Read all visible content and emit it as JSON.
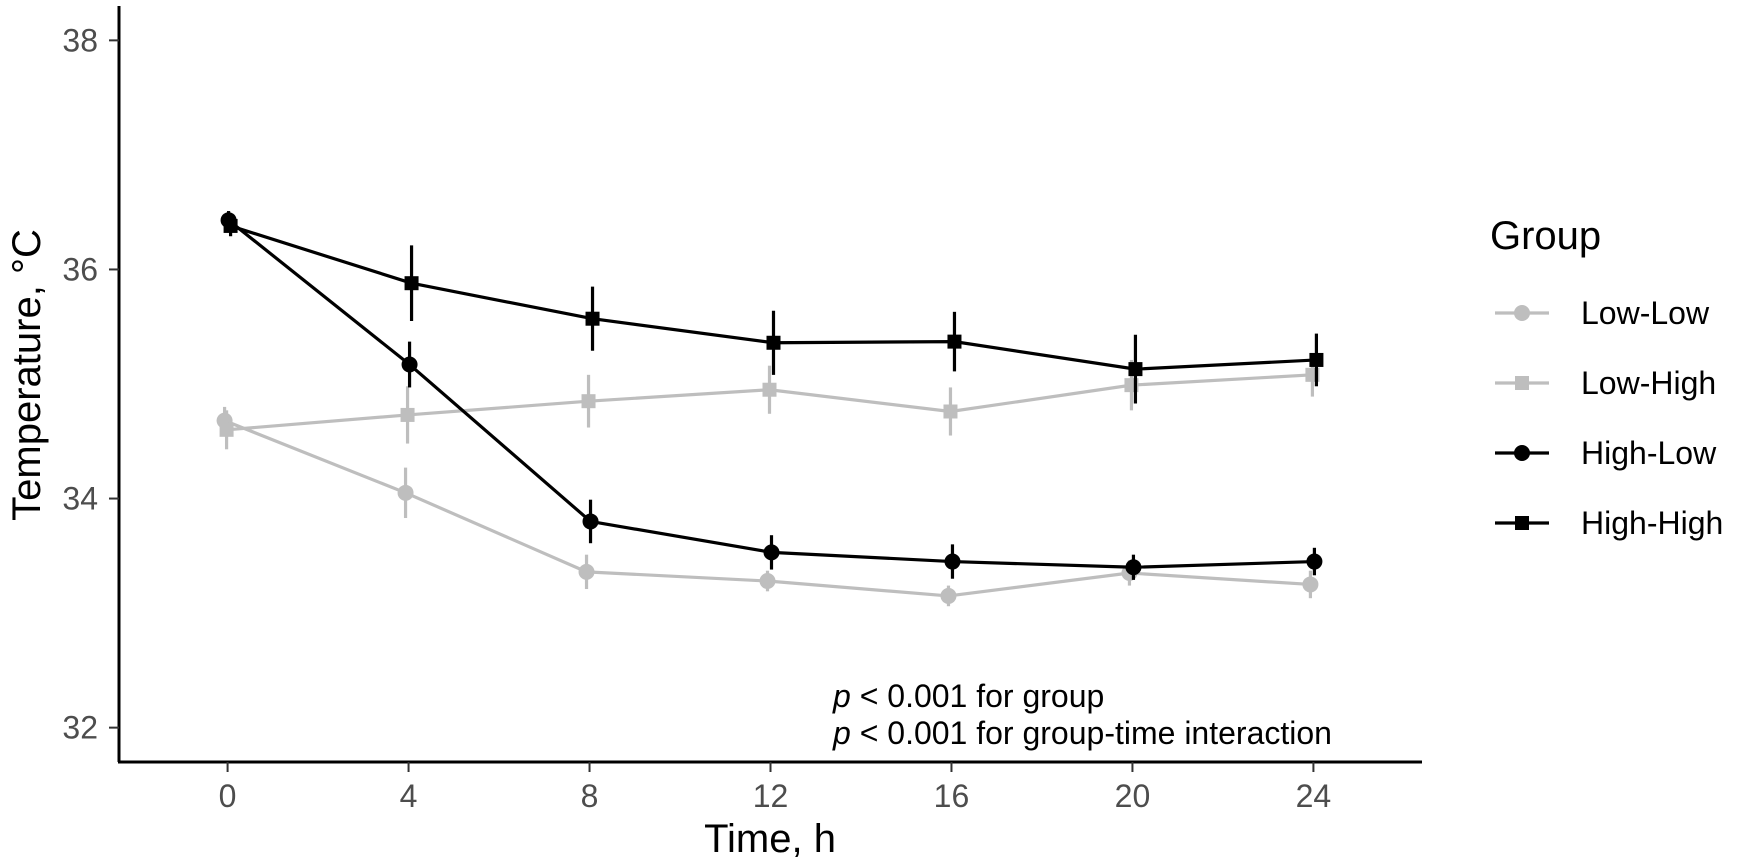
{
  "chart_data": {
    "type": "line",
    "xlabel": "Time, h",
    "ylabel": "Temperature, °C",
    "x": [
      0,
      4,
      8,
      12,
      16,
      20,
      24
    ],
    "xticks": [
      "0",
      "4",
      "8",
      "12",
      "16",
      "20",
      "24"
    ],
    "yticks": [
      "32",
      "34",
      "36",
      "38"
    ],
    "xlim": [
      -2.4,
      26.4
    ],
    "ylim": [
      31.7,
      38.3
    ],
    "grid": false,
    "legend": {
      "title": "Group",
      "position": "right"
    },
    "series": [
      {
        "name": "Low-Low",
        "color": "#bebebe",
        "marker": "circle",
        "values": [
          34.68,
          34.05,
          33.36,
          33.28,
          33.15,
          33.35,
          33.25
        ],
        "error": [
          0.12,
          0.22,
          0.15,
          0.09,
          0.09,
          0.11,
          0.12
        ]
      },
      {
        "name": "Low-High",
        "color": "#bebebe",
        "marker": "square",
        "values": [
          34.6,
          34.73,
          34.85,
          34.95,
          34.76,
          34.99,
          35.08
        ],
        "error": [
          0.17,
          0.25,
          0.23,
          0.21,
          0.21,
          0.22,
          0.19
        ]
      },
      {
        "name": "High-Low",
        "color": "#000000",
        "marker": "circle",
        "values": [
          36.43,
          35.17,
          33.8,
          33.53,
          33.45,
          33.4,
          33.45
        ],
        "error": [
          0.08,
          0.2,
          0.19,
          0.15,
          0.15,
          0.11,
          0.12
        ]
      },
      {
        "name": "High-High",
        "color": "#000000",
        "marker": "square",
        "values": [
          36.38,
          35.88,
          35.57,
          35.36,
          35.37,
          35.13,
          35.21
        ],
        "error": [
          0.09,
          0.33,
          0.28,
          0.28,
          0.26,
          0.3,
          0.23
        ]
      }
    ],
    "annotations": [
      {
        "italic": "p",
        "text": " < 0.001 for group"
      },
      {
        "italic": "p",
        "text": " < 0.001 for group-time interaction"
      }
    ]
  }
}
